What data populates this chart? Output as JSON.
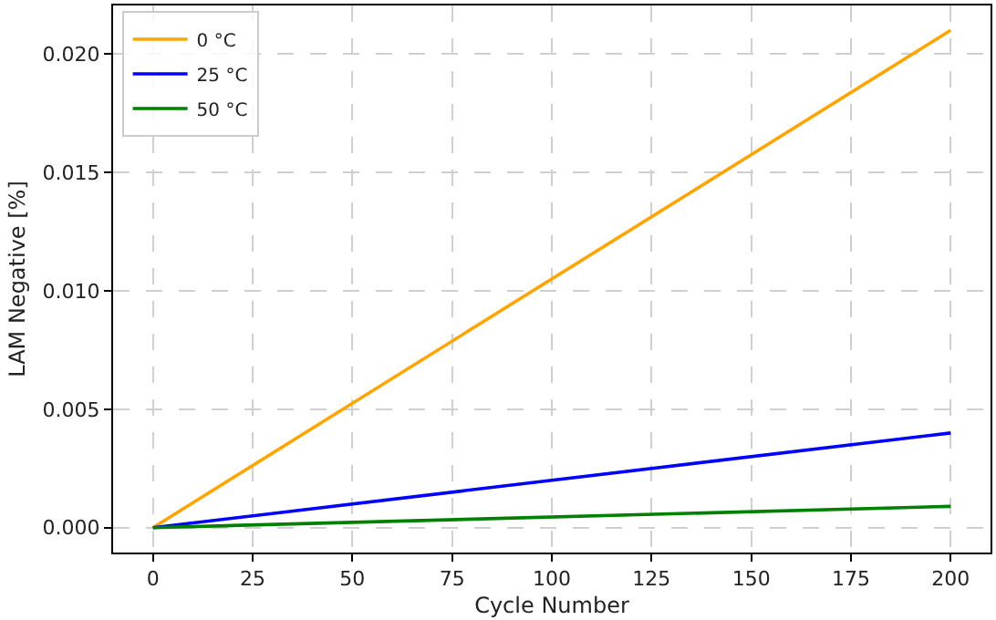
{
  "chart_data": {
    "type": "line",
    "xlabel": "Cycle Number",
    "ylabel": "LAM Negative [%]",
    "x": [
      0,
      200
    ],
    "series": [
      {
        "name": "0 °C",
        "color": "#ffa500",
        "values": [
          0,
          0.021
        ]
      },
      {
        "name": "25 °C",
        "color": "#0000ff",
        "values": [
          0,
          0.004
        ]
      },
      {
        "name": "50 °C",
        "color": "#008000",
        "values": [
          0,
          0.0009
        ]
      }
    ],
    "xlim": [
      -10,
      210
    ],
    "xticks": [
      0,
      25,
      50,
      75,
      100,
      125,
      150,
      175,
      200
    ],
    "ylim": [
      -0.00105,
      0.02205
    ],
    "yticks": [
      {
        "value": 0,
        "label": "0.000"
      },
      {
        "value": 0.005,
        "label": "0.005"
      },
      {
        "value": 0.01,
        "label": "0.010"
      },
      {
        "value": 0.015,
        "label": "0.015"
      },
      {
        "value": 0.02,
        "label": "0.020"
      }
    ],
    "grid": true,
    "legend": "top left",
    "marker": "none",
    "line_style": "solid"
  }
}
